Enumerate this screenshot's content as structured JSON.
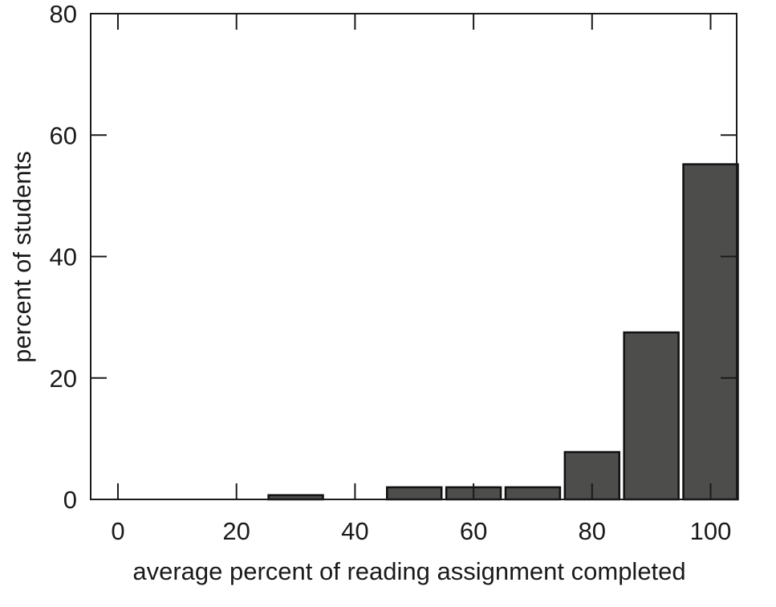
{
  "chart_data": {
    "type": "bar",
    "title": "",
    "xlabel": "average percent of reading assignment completed",
    "ylabel": "percent of students",
    "x": [
      30,
      50,
      60,
      70,
      80,
      90,
      100
    ],
    "values": [
      0.7,
      2,
      2,
      2,
      7.8,
      27.5,
      55.2
    ],
    "bin_width": 10,
    "xlim": [
      -4.6,
      104.4
    ],
    "ylim": [
      0,
      80
    ],
    "xticks": [
      0,
      20,
      40,
      60,
      80,
      100
    ],
    "yticks": [
      0,
      20,
      40,
      60,
      80
    ],
    "grid": false,
    "bar_color": "#4d4d4b",
    "edge_color": "#111111"
  }
}
